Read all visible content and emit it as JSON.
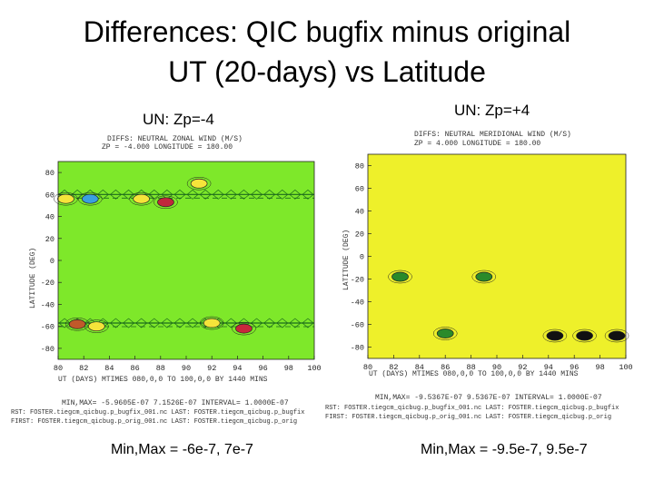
{
  "slide": {
    "title_line1": "Differences: QIC bugfix minus original",
    "title_line2": "UT (20-days) vs Latitude"
  },
  "panels": [
    {
      "subtitle": "UN: Zp=-4",
      "header_line1": "DIFFS: NEUTRAL ZONAL WIND (M/S)",
      "header_line2": "ZP = -4.000 LONGITUDE = 180.00",
      "ylabel": "LATITUDE (DEG)",
      "xlabel": "UT (DAYS) MTIMES 080,0,0 TO 100,0,0 BY 1440 MINS",
      "footer_line1": "MIN,MAX= -5.9605E-07 7.1526E-07 INTERVAL= 1.0000E-07",
      "footer_line2": "RST: FOSTER.tiegcm_qicbug.p_bugfix_001.nc LAST: FOSTER.tiegcm_qicbug.p_bugfix",
      "footer_line3": "FIRST: FOSTER.tiegcm_qicbug.p_orig_001.nc LAST: FOSTER.tiegcm_qicbug.p_orig",
      "minmax": "Min,Max = -6e-7, 7e-7",
      "bg_color": "#7ee82a"
    },
    {
      "subtitle": "UN: Zp=+4",
      "header_line1": "DIFFS: NEUTRAL MERIDIONAL WIND (M/S)",
      "header_line2": "ZP = 4.000 LONGITUDE = 180.00",
      "ylabel": "LATITUDE (DEG)",
      "xlabel": "UT (DAYS) MTIMES 080,0,0 TO 100,0,0 BY 1440 MINS",
      "footer_line1": "MIN,MAX= -9.5367E-07 9.5367E-07 INTERVAL= 1.0000E-07",
      "footer_line2": "RST: FOSTER.tiegcm_qicbug.p_bugfix_001.nc LAST: FOSTER.tiegcm_qicbug.p_bugfix",
      "footer_line3": "FIRST: FOSTER.tiegcm_qicbug.p_orig_001.nc LAST: FOSTER.tiegcm_qicbug.p_orig",
      "minmax": "Min,Max = -9.5e-7, 9.5e-7",
      "bg_color": "#eef02a"
    }
  ],
  "chart_data": [
    {
      "type": "heatmap",
      "title": "DIFFS: NEUTRAL ZONAL WIND (M/S)",
      "xlabel": "UT (DAYS)",
      "ylabel": "LATITUDE (DEG)",
      "xlim": [
        80,
        100
      ],
      "ylim": [
        -90,
        90
      ],
      "x_ticks": [
        80,
        82,
        84,
        86,
        88,
        90,
        92,
        94,
        96,
        98,
        100
      ],
      "y_ticks": [
        80,
        60,
        40,
        20,
        0,
        -20,
        -40,
        -60,
        -80
      ],
      "y_tick_labels": [
        "80",
        "60",
        "40",
        "20",
        "0",
        "-20",
        "-40",
        "-60",
        "-80"
      ],
      "min": -5.9605e-07,
      "max": 7.1526e-07,
      "interval": 1e-07,
      "bands": [
        {
          "lat": 60,
          "x_from": 80,
          "x_to": 100,
          "color": "#1c6b1c"
        },
        {
          "lat": -57,
          "x_from": 80,
          "x_to": 100,
          "color": "#1c6b1c"
        }
      ],
      "features": [
        {
          "x": 80.6,
          "lat": 56,
          "kind": "cells",
          "color": "#f5e43a"
        },
        {
          "x": 82.5,
          "lat": 56,
          "kind": "cells",
          "color": "#3aa0e0"
        },
        {
          "x": 86.5,
          "lat": 56,
          "kind": "cells",
          "color": "#f5e43a"
        },
        {
          "x": 88.4,
          "lat": 53,
          "kind": "cells",
          "color": "#c0283c"
        },
        {
          "x": 91,
          "lat": 70,
          "kind": "cells",
          "color": "#f5e43a"
        },
        {
          "x": 81.5,
          "lat": -58,
          "kind": "cells",
          "color": "#c05a2a"
        },
        {
          "x": 83,
          "lat": -60,
          "kind": "cells",
          "color": "#f5e43a"
        },
        {
          "x": 92,
          "lat": -57,
          "kind": "cells",
          "color": "#f5e43a"
        },
        {
          "x": 94.5,
          "lat": -62,
          "kind": "cells",
          "color": "#c8283c"
        }
      ]
    },
    {
      "type": "heatmap",
      "title": "DIFFS: NEUTRAL MERIDIONAL WIND (M/S)",
      "xlabel": "UT (DAYS)",
      "ylabel": "LATITUDE (DEG)",
      "xlim": [
        80,
        100
      ],
      "ylim": [
        -90,
        90
      ],
      "x_ticks": [
        80,
        82,
        84,
        86,
        88,
        90,
        92,
        94,
        96,
        98,
        100
      ],
      "y_ticks": [
        80,
        60,
        40,
        20,
        0,
        -20,
        -40,
        -60,
        -80
      ],
      "y_tick_labels": [
        "80",
        "60",
        "40",
        "20",
        "0",
        "-20",
        "-40",
        "-60",
        "-80"
      ],
      "min": -9.5367e-07,
      "max": 9.5367e-07,
      "interval": 1e-07,
      "bands": [],
      "features": [
        {
          "x": 82.5,
          "lat": -18,
          "kind": "cells",
          "color": "#2a8a2a"
        },
        {
          "x": 89,
          "lat": -18,
          "kind": "cells",
          "color": "#2a8a2a"
        },
        {
          "x": 94.5,
          "lat": -70,
          "kind": "cells",
          "color": "#111111"
        },
        {
          "x": 96.8,
          "lat": -70,
          "kind": "cells",
          "color": "#111111"
        },
        {
          "x": 99.3,
          "lat": -70,
          "kind": "cells",
          "color": "#111111"
        },
        {
          "x": 86,
          "lat": -68,
          "kind": "cells",
          "color": "#2a8a2a"
        }
      ]
    }
  ]
}
